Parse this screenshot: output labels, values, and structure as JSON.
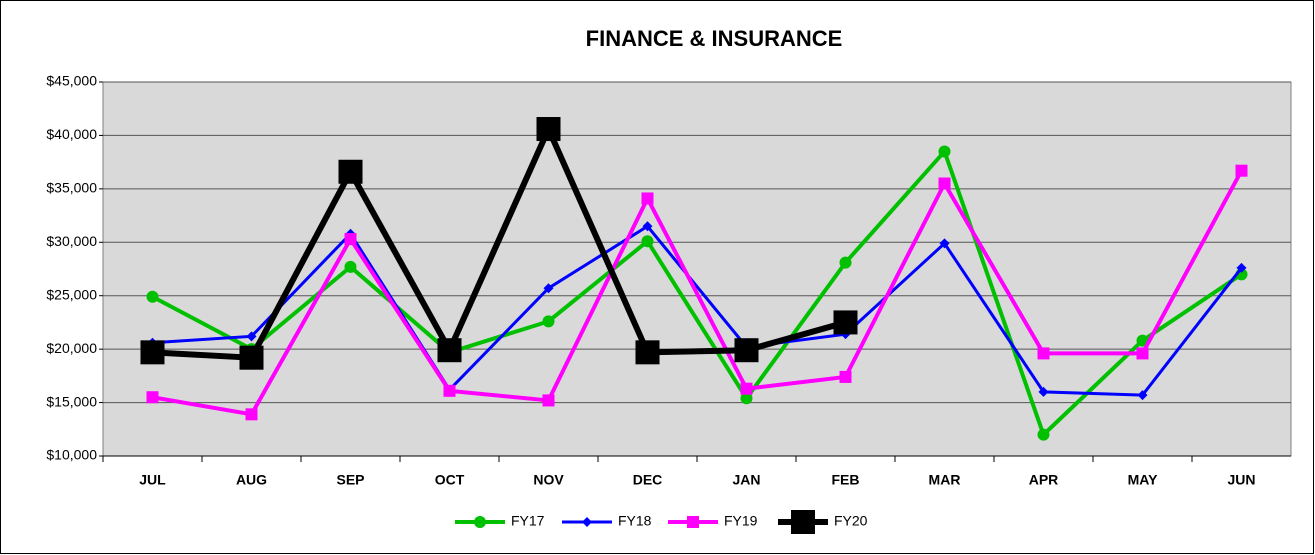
{
  "chart_data": {
    "type": "line",
    "title": "FINANCE & INSURANCE",
    "categories": [
      "JUL",
      "AUG",
      "SEP",
      "OCT",
      "NOV",
      "DEC",
      "JAN",
      "FEB",
      "MAR",
      "APR",
      "MAY",
      "JUN"
    ],
    "series": [
      {
        "name": "FY17",
        "color": "#00c000",
        "values": [
          24900,
          20000,
          27700,
          19700,
          22600,
          30100,
          15400,
          28100,
          38500,
          12000,
          20800,
          27000
        ]
      },
      {
        "name": "FY18",
        "color": "#0000ff",
        "values": [
          20600,
          21200,
          30800,
          16200,
          25700,
          31500,
          20200,
          21400,
          29900,
          16000,
          15700,
          27600
        ]
      },
      {
        "name": "FY19",
        "color": "#ff00ff",
        "values": [
          15500,
          13900,
          30300,
          16100,
          15200,
          34100,
          16300,
          17400,
          35500,
          19600,
          19600,
          36700
        ]
      },
      {
        "name": "FY20",
        "color": "#000000",
        "values": [
          19700,
          19200,
          36600,
          19900,
          40600,
          19700,
          19900,
          22500,
          null,
          null,
          null,
          null
        ]
      }
    ],
    "ylim": [
      10000,
      45000
    ],
    "yticks": [
      {
        "value": 10000,
        "label": "$10,000"
      },
      {
        "value": 15000,
        "label": "$15,000"
      },
      {
        "value": 20000,
        "label": "$20,000"
      },
      {
        "value": 25000,
        "label": "$25,000"
      },
      {
        "value": 30000,
        "label": "$30,000"
      },
      {
        "value": 35000,
        "label": "$35,000"
      },
      {
        "value": 40000,
        "label": "$40,000"
      },
      {
        "value": 45000,
        "label": "$45,000"
      }
    ],
    "grid": true,
    "legend": "bottom"
  }
}
